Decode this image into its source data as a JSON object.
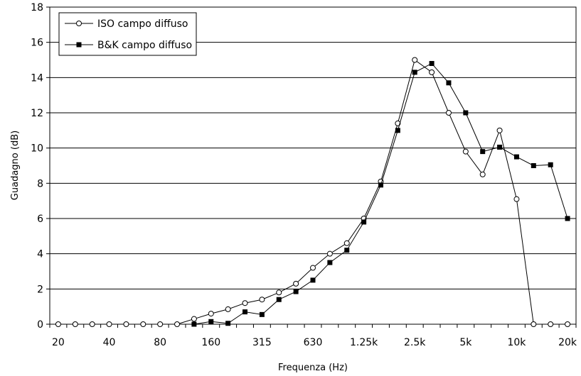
{
  "chart_data": {
    "type": "line",
    "xlabel": "Frequenza (Hz)",
    "ylabel": "Guadagno (dB)",
    "ylim": [
      0,
      18
    ],
    "yticks": [
      0,
      2,
      4,
      6,
      8,
      10,
      12,
      14,
      16,
      18
    ],
    "x_scale": "log-thirds",
    "x_tick_labels": [
      "20",
      "40",
      "80",
      "160",
      "315",
      "630",
      "1.25k",
      "2.5k",
      "5k",
      "10k",
      "20k"
    ],
    "x": [
      20,
      25,
      31.5,
      40,
      50,
      63,
      80,
      100,
      125,
      160,
      200,
      250,
      315,
      400,
      500,
      630,
      800,
      1000,
      1250,
      1600,
      2000,
      2500,
      3150,
      4000,
      5000,
      6300,
      8000,
      10000,
      12500,
      16000,
      20000
    ],
    "grid": "horizontal",
    "legend_position": "top-left",
    "series": [
      {
        "name": "ISO campo diffuso",
        "marker": "open-circle",
        "color": "#000000",
        "values": [
          0,
          0,
          0,
          0,
          0,
          0,
          0,
          0,
          0.3,
          0.6,
          0.85,
          1.2,
          1.4,
          1.8,
          2.3,
          3.2,
          4.0,
          4.6,
          6.0,
          8.1,
          11.4,
          15.0,
          14.3,
          12.0,
          9.8,
          8.5,
          11.0,
          7.1,
          0,
          0,
          0
        ]
      },
      {
        "name": "B&K campo diffuso",
        "marker": "filled-square",
        "color": "#000000",
        "values": [
          null,
          null,
          null,
          null,
          null,
          null,
          null,
          null,
          0.0,
          0.15,
          0.05,
          0.7,
          0.55,
          1.4,
          1.85,
          2.5,
          3.5,
          4.2,
          5.8,
          7.9,
          11.0,
          14.3,
          14.8,
          13.7,
          12.0,
          9.8,
          10.05,
          9.5,
          9.0,
          9.05,
          6.0
        ]
      }
    ]
  }
}
